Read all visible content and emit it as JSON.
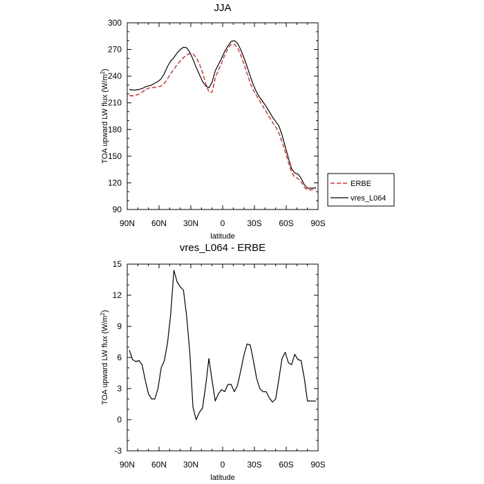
{
  "chart_data": [
    {
      "type": "line",
      "title": "JJA",
      "xlabel": "latitude",
      "ylabel": "TOA upward LW flux (W/m",
      "ylabel_sup": "2",
      "ylabel_end": ")",
      "xlim": [
        90,
        -90
      ],
      "ylim": [
        90,
        300
      ],
      "x_ticks": [
        90,
        60,
        30,
        0,
        -30,
        -60,
        -90
      ],
      "x_tick_labels": [
        "90N",
        "60N",
        "30N",
        "0",
        "30S",
        "60S",
        "90S"
      ],
      "y_ticks": [
        90,
        120,
        150,
        180,
        210,
        240,
        270,
        300
      ],
      "y_tick_labels": [
        "90",
        "120",
        "150",
        "180",
        "210",
        "240",
        "270",
        "300"
      ],
      "legend_position": "right",
      "series": [
        {
          "name": "ERBE",
          "color": "#ff0000",
          "style": "dashed",
          "x": [
            88,
            85,
            82,
            79,
            76,
            73,
            70,
            67,
            64,
            61,
            58,
            55,
            52,
            49,
            46,
            43,
            40,
            37,
            34,
            31,
            28,
            25,
            22,
            19,
            16,
            13,
            10,
            7,
            4,
            1,
            -2,
            -5,
            -8,
            -11,
            -14,
            -17,
            -20,
            -23,
            -26,
            -29,
            -32,
            -35,
            -38,
            -41,
            -44,
            -47,
            -50,
            -53,
            -56,
            -59,
            -62,
            -65,
            -68,
            -71,
            -74,
            -77,
            -80,
            -83,
            -86,
            -88
          ],
          "values": [
            218,
            218,
            218.5,
            220,
            222,
            225,
            226.5,
            227,
            227.5,
            228,
            229,
            232,
            237,
            243,
            248,
            253,
            257,
            261,
            264,
            265.5,
            265,
            261,
            254,
            244,
            232,
            222,
            222,
            238,
            247,
            255,
            264,
            271,
            276,
            276,
            272,
            264,
            254,
            243,
            232,
            224,
            218,
            212,
            206,
            200,
            194,
            188,
            183,
            176,
            166,
            155,
            143,
            132,
            126,
            125,
            121,
            115,
            112,
            112,
            113,
            113
          ]
        },
        {
          "name": "vres_L064",
          "color": "#000000",
          "style": "solid",
          "x": [
            88,
            85,
            82,
            79,
            76,
            73,
            70,
            67,
            64,
            61,
            58,
            55,
            52,
            49,
            46,
            43,
            40,
            37,
            34,
            31,
            28,
            25,
            22,
            19,
            16,
            13,
            10,
            7,
            4,
            1,
            -2,
            -5,
            -8,
            -11,
            -14,
            -17,
            -20,
            -23,
            -26,
            -29,
            -32,
            -35,
            -38,
            -41,
            -44,
            -47,
            -50,
            -53,
            -56,
            -59,
            -62,
            -65,
            -68,
            -71,
            -74,
            -77,
            -80,
            -83,
            -86,
            -88
          ],
          "values": [
            225,
            224.5,
            224.5,
            225,
            226,
            228,
            229,
            230,
            232,
            234,
            237,
            243,
            251,
            257,
            261,
            266,
            270,
            272.5,
            272,
            267,
            259,
            250,
            242,
            234,
            229,
            227,
            233,
            246,
            253,
            260,
            268,
            274,
            279,
            280,
            277,
            270,
            261,
            251,
            240,
            230,
            222,
            216,
            211,
            206,
            200,
            194,
            189,
            184,
            174,
            161,
            148,
            136,
            131,
            130,
            125,
            118,
            114,
            114,
            114,
            115
          ]
        }
      ]
    },
    {
      "type": "line",
      "title": "vres_L064 - ERBE",
      "xlabel": "latitude",
      "ylabel": "TOA upward LW flux (W/m",
      "ylabel_sup": "2",
      "ylabel_end": ")",
      "xlim": [
        90,
        -90
      ],
      "ylim": [
        -3,
        15
      ],
      "x_ticks": [
        90,
        60,
        30,
        0,
        -30,
        -60,
        -90
      ],
      "x_tick_labels": [
        "90N",
        "60N",
        "30N",
        "0",
        "30S",
        "60S",
        "90S"
      ],
      "y_ticks": [
        -3,
        0,
        3,
        6,
        9,
        12,
        15
      ],
      "y_tick_labels": [
        "-3",
        "0",
        "3",
        "6",
        "9",
        "12",
        "15"
      ],
      "series": [
        {
          "name": "vres_L064 - ERBE",
          "color": "#000000",
          "style": "solid",
          "x": [
            88,
            85,
            82,
            79,
            76,
            73,
            70,
            67,
            64,
            61,
            58,
            55,
            52,
            49,
            46,
            43,
            40,
            37,
            34,
            31,
            28,
            25,
            22,
            19,
            16,
            13,
            10,
            7,
            4,
            1,
            -2,
            -5,
            -8,
            -11,
            -14,
            -17,
            -20,
            -23,
            -26,
            -29,
            -32,
            -35,
            -38,
            -41,
            -44,
            -47,
            -50,
            -53,
            -56,
            -59,
            -62,
            -65,
            -68,
            -71,
            -74,
            -77,
            -80,
            -83,
            -86,
            -88
          ],
          "values": [
            6.7,
            5.8,
            5.6,
            5.7,
            5.3,
            3.8,
            2.5,
            2.0,
            2.0,
            3.0,
            5.0,
            5.7,
            7.4,
            10.2,
            14.4,
            13.3,
            12.8,
            12.5,
            10.0,
            6.5,
            1.2,
            0.0,
            0.7,
            1.1,
            3.3,
            5.9,
            3.8,
            1.8,
            2.5,
            2.9,
            2.7,
            3.4,
            3.4,
            2.7,
            3.3,
            4.7,
            6.2,
            7.3,
            7.2,
            5.7,
            4.0,
            3.0,
            2.7,
            2.7,
            2.1,
            1.7,
            2.0,
            3.9,
            5.9,
            6.5,
            5.5,
            5.3,
            6.3,
            5.8,
            5.7,
            4.0,
            1.8,
            1.8,
            1.8,
            1.8
          ]
        }
      ]
    }
  ]
}
